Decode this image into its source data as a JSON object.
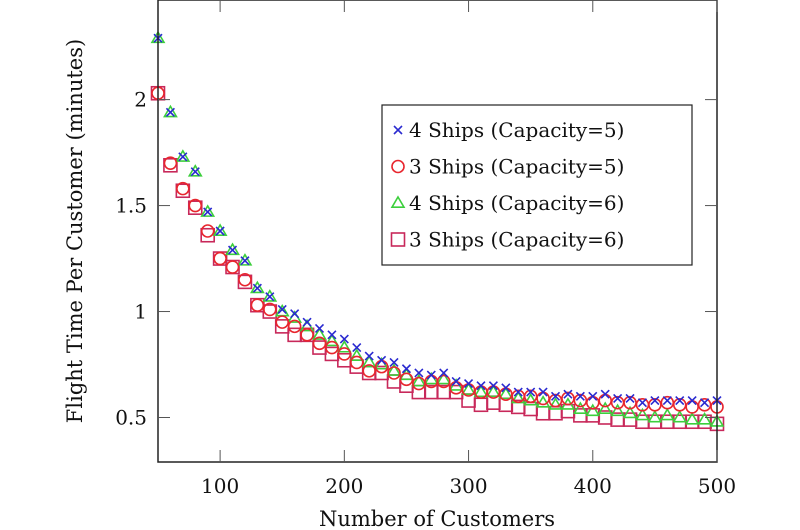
{
  "chart_data": {
    "type": "scatter",
    "title": "",
    "xlabel": "Number of Customers",
    "ylabel": "Flight Time Per Customer (minutes)",
    "xlim": [
      50,
      500
    ],
    "ylim": [
      0.29,
      2.47
    ],
    "xticks": [
      100,
      200,
      300,
      400,
      500
    ],
    "xtick_labels": [
      "100",
      "200",
      "300",
      "400",
      "500"
    ],
    "yticks": [
      0.5,
      1,
      1.5,
      2
    ],
    "ytick_labels": [
      "0.5",
      "1",
      "1.5",
      "2"
    ],
    "grid": false,
    "legend_position": "top-right",
    "x": [
      50,
      60,
      70,
      80,
      90,
      100,
      110,
      120,
      130,
      140,
      150,
      160,
      170,
      180,
      190,
      200,
      210,
      220,
      230,
      240,
      250,
      260,
      270,
      280,
      290,
      300,
      310,
      320,
      330,
      340,
      350,
      360,
      370,
      380,
      390,
      400,
      410,
      420,
      430,
      440,
      450,
      460,
      470,
      480,
      490,
      500
    ],
    "series": [
      {
        "name": "4 Ships (Capacity=5)",
        "marker": "x",
        "color": "#2a2ad0",
        "values": [
          2.29,
          1.94,
          1.73,
          1.66,
          1.47,
          1.38,
          1.29,
          1.24,
          1.11,
          1.07,
          1.01,
          0.99,
          0.95,
          0.92,
          0.89,
          0.87,
          0.83,
          0.79,
          0.77,
          0.76,
          0.73,
          0.71,
          0.7,
          0.71,
          0.67,
          0.66,
          0.65,
          0.65,
          0.64,
          0.62,
          0.62,
          0.62,
          0.6,
          0.61,
          0.6,
          0.6,
          0.61,
          0.59,
          0.59,
          0.57,
          0.58,
          0.58,
          0.58,
          0.58,
          0.57,
          0.58
        ]
      },
      {
        "name": "3 Ships (Capacity=5)",
        "marker": "o",
        "color": "#e8262e",
        "values": [
          2.03,
          1.7,
          1.58,
          1.5,
          1.38,
          1.25,
          1.21,
          1.15,
          1.03,
          1.01,
          0.95,
          0.93,
          0.89,
          0.85,
          0.83,
          0.8,
          0.76,
          0.72,
          0.74,
          0.71,
          0.68,
          0.66,
          0.67,
          0.67,
          0.64,
          0.63,
          0.62,
          0.62,
          0.61,
          0.6,
          0.6,
          0.59,
          0.58,
          0.59,
          0.58,
          0.57,
          0.58,
          0.57,
          0.57,
          0.56,
          0.56,
          0.57,
          0.56,
          0.55,
          0.56,
          0.55
        ]
      },
      {
        "name": "4 Ships (Capacity=6)",
        "marker": "triangle",
        "color": "#3ccf3c",
        "values": [
          2.29,
          1.94,
          1.73,
          1.66,
          1.47,
          1.38,
          1.29,
          1.24,
          1.11,
          1.07,
          1.0,
          0.97,
          0.93,
          0.89,
          0.86,
          0.83,
          0.79,
          0.76,
          0.75,
          0.72,
          0.7,
          0.67,
          0.68,
          0.68,
          0.65,
          0.63,
          0.62,
          0.62,
          0.61,
          0.59,
          0.58,
          0.57,
          0.56,
          0.56,
          0.54,
          0.53,
          0.54,
          0.53,
          0.52,
          0.51,
          0.5,
          0.51,
          0.5,
          0.49,
          0.49,
          0.48
        ]
      },
      {
        "name": "3 Ships (Capacity=6)",
        "marker": "square",
        "color": "#c8285a",
        "values": [
          2.03,
          1.69,
          1.57,
          1.49,
          1.36,
          1.25,
          1.21,
          1.14,
          1.03,
          1.0,
          0.93,
          0.89,
          0.89,
          0.83,
          0.8,
          0.77,
          0.74,
          0.71,
          0.71,
          0.67,
          0.65,
          0.62,
          0.62,
          0.62,
          0.62,
          0.58,
          0.56,
          0.57,
          0.56,
          0.55,
          0.54,
          0.52,
          0.52,
          0.53,
          0.51,
          0.51,
          0.5,
          0.49,
          0.49,
          0.48,
          0.48,
          0.48,
          0.48,
          0.48,
          0.48,
          0.47
        ]
      }
    ]
  }
}
